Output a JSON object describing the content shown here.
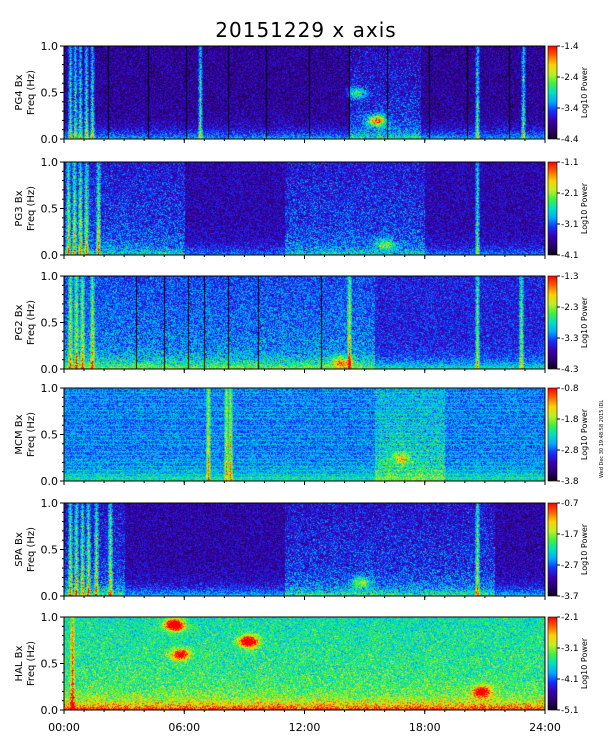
{
  "title": "20151229 x axis",
  "side_note": "Wed Dec 30 19:48:58 2015 IDL",
  "colors": {
    "colorscale": [
      "#0a0018",
      "#2a0070",
      "#3a00b0",
      "#1430ff",
      "#00a8ff",
      "#00e0c0",
      "#40f040",
      "#c0f020",
      "#ffd000",
      "#ff6000",
      "#ff0000"
    ]
  },
  "chart_data": [
    {
      "type": "heatmap",
      "ylabel_station": "PG4 Bx",
      "ylabel_unit": "Freq (Hz)",
      "yticks": [
        "1.0",
        "0.5",
        "0.0"
      ],
      "ylim": [
        0,
        1
      ],
      "xlim_hours": [
        0,
        24
      ],
      "colorbar_ticks": [
        "-1.4",
        "-2.4",
        "-3.4",
        "-4.4"
      ],
      "colorbar_label": "Log10 Power",
      "colorbar_range": [
        -4.4,
        -1.4
      ],
      "features": {
        "background": 0.05,
        "baseline": 0.3,
        "spikes_h": [
          0.3,
          0.55,
          0.8,
          1.1,
          1.4,
          6.8,
          20.6,
          22.9
        ],
        "active_h": [
          [
            14.2,
            17.8
          ]
        ],
        "blobs": [
          [
            15.6,
            0.2,
            0.65
          ],
          [
            14.6,
            0.5,
            0.35
          ]
        ],
        "gaps_h": [
          2.2,
          4.2,
          6.1,
          8.2,
          10.1,
          12.2,
          14.2,
          16.1,
          18.2,
          20.1,
          22.2
        ]
      }
    },
    {
      "type": "heatmap",
      "ylabel_station": "PG3 Bx",
      "ylabel_unit": "Freq (Hz)",
      "yticks": [
        "1.0",
        "0.5",
        "0.0"
      ],
      "ylim": [
        0,
        1
      ],
      "xlim_hours": [
        0,
        24
      ],
      "colorbar_ticks": [
        "-1.1",
        "-2.1",
        "-3.1",
        "-4.1"
      ],
      "colorbar_label": "Log10 Power",
      "colorbar_range": [
        -4.1,
        -1.1
      ],
      "features": {
        "background": 0.08,
        "baseline": 0.2,
        "spikes_h": [
          0.2,
          0.5,
          0.8,
          1.1,
          1.7,
          20.6
        ],
        "active_h": [
          [
            0.0,
            6.0
          ],
          [
            11.0,
            18.0
          ]
        ],
        "blobs": [
          [
            16.0,
            0.12,
            0.3
          ]
        ],
        "gaps_h": []
      }
    },
    {
      "type": "heatmap",
      "ylabel_station": "PG2 Bx",
      "ylabel_unit": "Freq (Hz)",
      "yticks": [
        "1.0",
        "0.5",
        "0.0"
      ],
      "ylim": [
        0,
        1
      ],
      "xlim_hours": [
        0,
        24
      ],
      "colorbar_ticks": [
        "-1.3",
        "-2.3",
        "-3.3",
        "-4.3"
      ],
      "colorbar_label": "Log10 Power",
      "colorbar_range": [
        -4.3,
        -1.3
      ],
      "features": {
        "background": 0.15,
        "baseline": 0.3,
        "spikes_h": [
          0.3,
          0.6,
          0.9,
          1.4,
          14.2,
          20.6,
          22.8
        ],
        "active_h": [
          [
            0.0,
            15.5
          ]
        ],
        "blobs": [
          [
            13.8,
            0.08,
            0.4
          ]
        ],
        "gaps_h": [
          3.6,
          5.0,
          6.2,
          7.0,
          8.2,
          9.7,
          12.8
        ]
      }
    },
    {
      "type": "heatmap",
      "ylabel_station": "MCM Bx",
      "ylabel_unit": "Freq (Hz)",
      "yticks": [
        "1.0",
        "0.5",
        "0.0"
      ],
      "ylim": [
        0,
        1
      ],
      "xlim_hours": [
        0,
        24
      ],
      "colorbar_ticks": [
        "-0.8",
        "-1.8",
        "-2.8",
        "-3.8"
      ],
      "colorbar_label": "Log10 Power",
      "colorbar_range": [
        -3.8,
        -0.8
      ],
      "features": {
        "background": 0.25,
        "baseline": 0.2,
        "spikes_h": [
          7.2,
          8.1,
          8.3
        ],
        "active_h": [
          [
            15.5,
            19.0
          ]
        ],
        "blobs": [
          [
            16.8,
            0.25,
            0.3
          ]
        ],
        "gaps_h": [],
        "hbands": true
      }
    },
    {
      "type": "heatmap",
      "ylabel_station": "SPA Bx",
      "ylabel_unit": "Freq (Hz)",
      "yticks": [
        "1.0",
        "0.5",
        "0.0"
      ],
      "ylim": [
        0,
        1
      ],
      "xlim_hours": [
        0,
        24
      ],
      "colorbar_ticks": [
        "-0.7",
        "-1.7",
        "-2.7",
        "-3.7"
      ],
      "colorbar_label": "Log10 Power",
      "colorbar_range": [
        -3.7,
        -0.7
      ],
      "features": {
        "background": 0.07,
        "baseline": 0.3,
        "spikes_h": [
          0.3,
          0.6,
          0.9,
          1.2,
          1.6,
          2.3,
          20.6
        ],
        "active_h": [
          [
            0.0,
            3.0
          ],
          [
            11.0,
            21.5
          ]
        ],
        "blobs": [
          [
            14.8,
            0.15,
            0.35
          ]
        ],
        "gaps_h": []
      }
    },
    {
      "type": "heatmap",
      "ylabel_station": "HAL Bx",
      "ylabel_unit": "Freq (Hz)",
      "yticks": [
        "1.0",
        "0.5",
        "0.0"
      ],
      "ylim": [
        0,
        1
      ],
      "xlim_hours": [
        0,
        24
      ],
      "colorbar_ticks": [
        "-2.1",
        "-3.1",
        "-4.1",
        "-5.1"
      ],
      "colorbar_label": "Log10 Power",
      "colorbar_range": [
        -5.1,
        -2.1
      ],
      "features": {
        "background": 0.35,
        "baseline": 0.45,
        "spikes_h": [
          0.4
        ],
        "active_h": [
          [
            0.0,
            24.0
          ]
        ],
        "blobs": [
          [
            5.5,
            0.92,
            0.95
          ],
          [
            5.8,
            0.6,
            0.6
          ],
          [
            9.2,
            0.74,
            0.85
          ],
          [
            20.8,
            0.2,
            0.6
          ]
        ],
        "gaps_h": []
      }
    }
  ],
  "xaxis": {
    "ticks": [
      "00:00",
      "06:00",
      "12:00",
      "18:00",
      "24:00"
    ],
    "tick_hours": [
      0,
      6,
      12,
      18,
      24
    ]
  }
}
